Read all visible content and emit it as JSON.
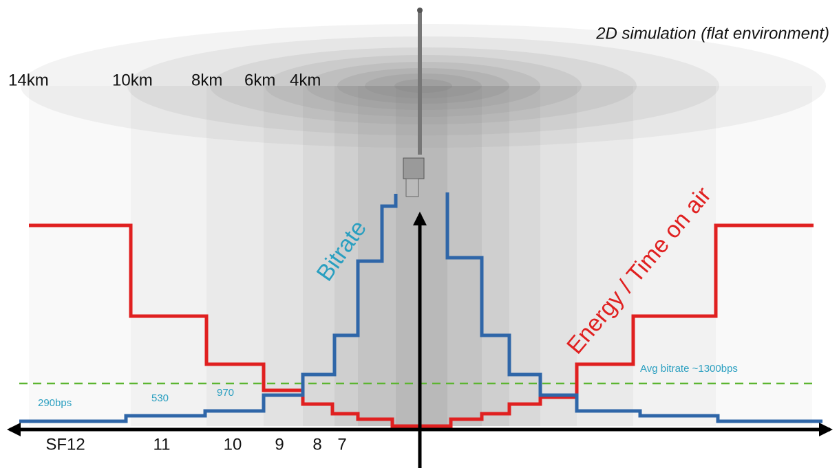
{
  "title": "2D simulation (flat environment)",
  "distance_labels": [
    "14km",
    "10km",
    "8km",
    "6km",
    "4km"
  ],
  "spreading_factors": [
    "SF12",
    "11",
    "10",
    "9",
    "8",
    "7"
  ],
  "curves": {
    "bitrate": "Bitrate",
    "energy": "Energy / Time on air"
  },
  "bitrate_labels": [
    "290bps",
    "530",
    "970"
  ],
  "average_label": "Avg bitrate ~1300bps"
}
